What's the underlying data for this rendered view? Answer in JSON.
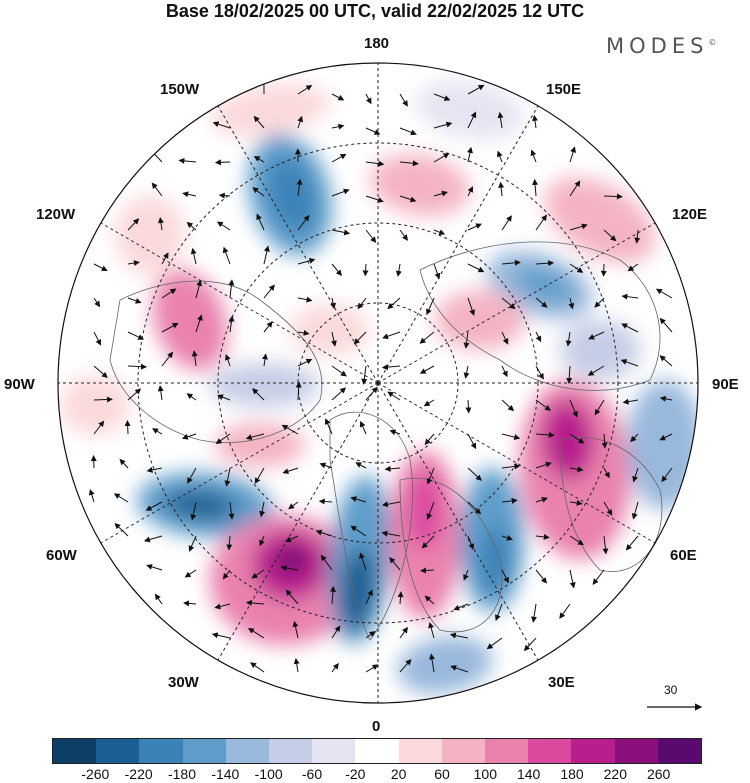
{
  "title": "Base 18/02/2025 00 UTC, valid 22/02/2025 12 UTC",
  "brand": "MODES",
  "brand_mark": "©",
  "longitude_labels": {
    "top": "180",
    "bottom": "0",
    "upper_left": "150W",
    "upper_right": "150E",
    "mid_upper_left": "120W",
    "mid_upper_right": "120E",
    "left": "90W",
    "right": "90E",
    "lower_left": "60W",
    "lower_right": "60E",
    "bottom_left": "30W",
    "bottom_right": "30E"
  },
  "reference_vector": {
    "label": "30"
  },
  "colorbar": {
    "ticks": [
      "-260",
      "-220",
      "-180",
      "-140",
      "-100",
      "-60",
      "-20",
      "20",
      "60",
      "100",
      "140",
      "180",
      "220",
      "260"
    ],
    "colors": [
      "#0d3f66",
      "#1b5e93",
      "#3b82b8",
      "#5e9dca",
      "#98b8dc",
      "#c6cde6",
      "#e6e4f2",
      "#ffffff",
      "#fbd9dc",
      "#f4b3c2",
      "#ea82ae",
      "#dc4aa0",
      "#b81e8c",
      "#8a0f7a",
      "#5a0a6e"
    ]
  }
}
